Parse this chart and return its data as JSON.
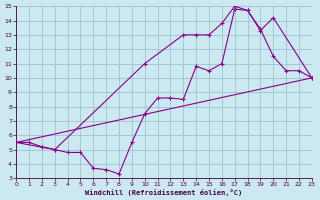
{
  "xlabel": "Windchill (Refroidissement éolien,°C)",
  "bg_color": "#cce8f0",
  "grid_color": "#99bbcc",
  "line_color": "#880088",
  "spine_color": "#440044",
  "tick_color": "#440044",
  "xlim": [
    0,
    23
  ],
  "ylim": [
    3,
    15
  ],
  "xticks": [
    0,
    1,
    2,
    3,
    4,
    5,
    6,
    7,
    8,
    9,
    10,
    11,
    12,
    13,
    14,
    15,
    16,
    17,
    18,
    19,
    20,
    21,
    22,
    23
  ],
  "yticks": [
    3,
    4,
    5,
    6,
    7,
    8,
    9,
    10,
    11,
    12,
    13,
    14,
    15
  ],
  "curve1_x": [
    0,
    1,
    2,
    3,
    4,
    5,
    6,
    7,
    8,
    9,
    10,
    11,
    12,
    13,
    14,
    15,
    16,
    17,
    18,
    19,
    20,
    21,
    22,
    23
  ],
  "curve1_y": [
    5.5,
    5.5,
    5.2,
    5.0,
    4.8,
    4.8,
    3.7,
    3.6,
    3.3,
    5.5,
    7.5,
    8.6,
    8.6,
    8.5,
    10.8,
    10.5,
    11.0,
    14.8,
    14.7,
    13.4,
    11.5,
    10.5,
    10.5,
    10.0
  ],
  "curve2_x": [
    0,
    23
  ],
  "curve2_y": [
    5.5,
    10.0
  ],
  "curve3_x": [
    0,
    3,
    10,
    13,
    14,
    15,
    16,
    17,
    18,
    19,
    20,
    23
  ],
  "curve3_y": [
    5.5,
    5.0,
    11.0,
    13.0,
    13.0,
    13.0,
    13.8,
    15.0,
    14.7,
    13.3,
    14.2,
    10.0
  ]
}
